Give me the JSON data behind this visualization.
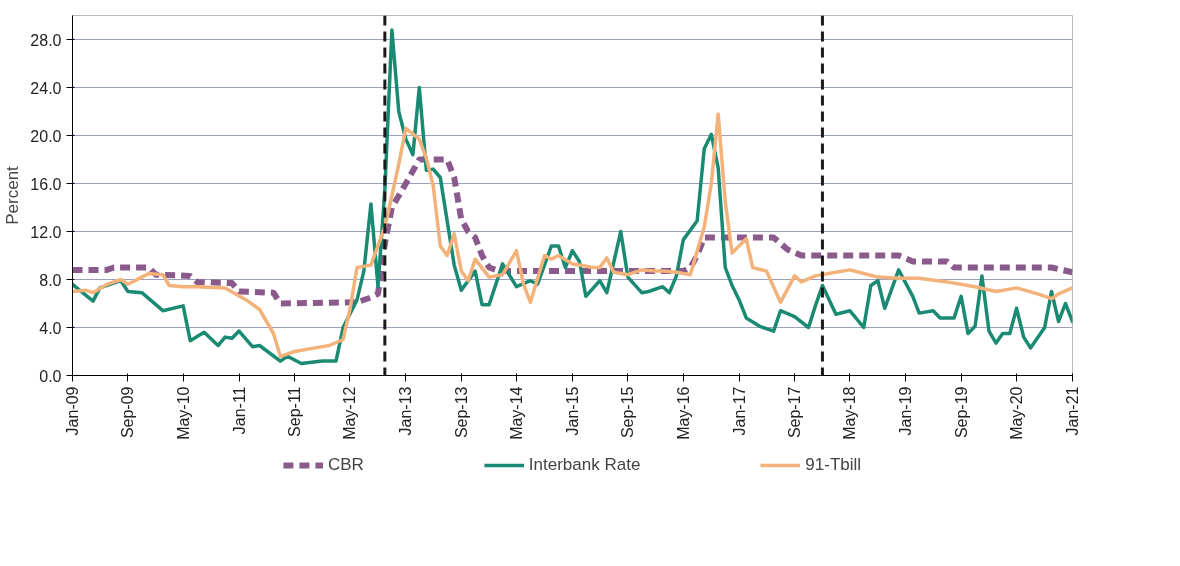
{
  "chart_data": {
    "type": "line",
    "ylabel": "Percent",
    "grid": "y",
    "legend": "bottom",
    "xlim": [
      "2009-01",
      "2021-01"
    ],
    "ylim": [
      0,
      30
    ],
    "xticks": [
      {
        "value": "2009-01",
        "label": "Jan-09"
      },
      {
        "value": "2009-09",
        "label": "Sep-09"
      },
      {
        "value": "2010-05",
        "label": "May-10"
      },
      {
        "value": "2011-01",
        "label": "Jan-11"
      },
      {
        "value": "2011-09",
        "label": "Sep-11"
      },
      {
        "value": "2012-05",
        "label": "May-12"
      },
      {
        "value": "2013-01",
        "label": "Jan-13"
      },
      {
        "value": "2013-09",
        "label": "Sep-13"
      },
      {
        "value": "2014-05",
        "label": "May-14"
      },
      {
        "value": "2015-01",
        "label": "Jan-15"
      },
      {
        "value": "2015-09",
        "label": "Sep-15"
      },
      {
        "value": "2016-05",
        "label": "May-16"
      },
      {
        "value": "2017-01",
        "label": "Jan-17"
      },
      {
        "value": "2017-09",
        "label": "Sep-17"
      },
      {
        "value": "2018-05",
        "label": "May-18"
      },
      {
        "value": "2019-01",
        "label": "Jan-19"
      },
      {
        "value": "2019-09",
        "label": "Sep-19"
      },
      {
        "value": "2020-05",
        "label": "May-20"
      },
      {
        "value": "2021-01",
        "label": "Jan-21"
      }
    ],
    "yticks": [
      {
        "value": 0,
        "label": "0.0"
      },
      {
        "value": 4,
        "label": "4.0"
      },
      {
        "value": 8,
        "label": "8.0"
      },
      {
        "value": 12,
        "label": "12.0"
      },
      {
        "value": 16,
        "label": "16.0"
      },
      {
        "value": 20,
        "label": "20.0"
      },
      {
        "value": 24,
        "label": "24.0"
      },
      {
        "value": 28,
        "label": "28.0"
      }
    ],
    "ref_lines": [
      {
        "axis": "x",
        "value": "2012-10",
        "color": "#1a1a1a",
        "line_style": "dashed"
      },
      {
        "axis": "x",
        "value": "2018-01",
        "color": "#1a1a1a",
        "line_style": "dashed"
      }
    ],
    "series": [
      {
        "name": "CBR",
        "color": "#8b5a8c",
        "line_style": "dashed",
        "x": [
          "2009-01",
          "2009-06",
          "2009-07",
          "2009-12",
          "2010-01",
          "2010-06",
          "2010-07",
          "2010-12",
          "2011-01",
          "2011-06",
          "2011-07",
          "2012-06",
          "2012-08",
          "2012-09",
          "2012-10",
          "2012-11",
          "2013-01",
          "2013-03",
          "2013-07",
          "2013-08",
          "2013-09",
          "2013-10",
          "2013-11",
          "2013-12",
          "2014-01",
          "2014-02",
          "2014-04",
          "2016-05",
          "2016-06",
          "2016-07",
          "2016-08",
          "2017-06",
          "2017-08",
          "2017-10",
          "2018-12",
          "2019-02",
          "2019-07",
          "2019-08",
          "2020-10",
          "2021-01"
        ],
        "values": [
          8.8,
          8.8,
          9.0,
          9.0,
          8.4,
          8.3,
          7.8,
          7.7,
          7.0,
          6.9,
          6.0,
          6.1,
          6.5,
          6.8,
          11.0,
          14.0,
          16.0,
          18.0,
          18.0,
          16.5,
          13.0,
          12.0,
          11.5,
          10.0,
          9.0,
          8.8,
          8.7,
          8.7,
          9.0,
          10.0,
          11.5,
          11.5,
          10.5,
          10.0,
          10.0,
          9.5,
          9.5,
          9.0,
          9.0,
          8.6
        ]
      },
      {
        "name": "Interbank Rate",
        "color": "#1a8a73",
        "line_style": "solid",
        "x": [
          "2009-01",
          "2009-04",
          "2009-05",
          "2009-08",
          "2009-09",
          "2009-11",
          "2010-02",
          "2010-05",
          "2010-06",
          "2010-08",
          "2010-10",
          "2010-11",
          "2010-12",
          "2011-01",
          "2011-03",
          "2011-04",
          "2011-07",
          "2011-08",
          "2011-10",
          "2012-01",
          "2012-03",
          "2012-04",
          "2012-06",
          "2012-07",
          "2012-08",
          "2012-09",
          "2012-10",
          "2012-11",
          "2012-12",
          "2013-01",
          "2013-02",
          "2013-03",
          "2013-04",
          "2013-05",
          "2013-06",
          "2013-07",
          "2013-08",
          "2013-09",
          "2013-11",
          "2013-12",
          "2014-01",
          "2014-03",
          "2014-05",
          "2014-07",
          "2014-08",
          "2014-10",
          "2014-11",
          "2014-12",
          "2015-01",
          "2015-02",
          "2015-03",
          "2015-05",
          "2015-06",
          "2015-08",
          "2015-09",
          "2015-11",
          "2015-12",
          "2016-02",
          "2016-03",
          "2016-04",
          "2016-05",
          "2016-07",
          "2016-08",
          "2016-09",
          "2016-10",
          "2016-11",
          "2016-12",
          "2017-01",
          "2017-02",
          "2017-04",
          "2017-06",
          "2017-07",
          "2017-09",
          "2017-11",
          "2017-12",
          "2018-01",
          "2018-03",
          "2018-05",
          "2018-07",
          "2018-08",
          "2018-09",
          "2018-10",
          "2018-12",
          "2019-02",
          "2019-03",
          "2019-05",
          "2019-06",
          "2019-08",
          "2019-09",
          "2019-10",
          "2019-11",
          "2019-12",
          "2020-01",
          "2020-02",
          "2020-03",
          "2020-04",
          "2020-05",
          "2020-06",
          "2020-07",
          "2020-09",
          "2020-10",
          "2020-11",
          "2020-12",
          "2021-01"
        ],
        "values": [
          7.6,
          6.2,
          7.3,
          7.9,
          7.0,
          6.9,
          5.4,
          5.8,
          2.9,
          3.6,
          2.5,
          3.2,
          3.1,
          3.7,
          2.4,
          2.5,
          1.2,
          1.6,
          1.0,
          1.2,
          1.2,
          4.0,
          6.3,
          8.7,
          14.3,
          7.4,
          15.5,
          28.8,
          22.0,
          19.7,
          18.4,
          24.0,
          17.1,
          17.2,
          16.5,
          12.9,
          9.2,
          7.1,
          8.7,
          5.9,
          5.9,
          9.3,
          7.4,
          7.9,
          7.6,
          10.8,
          10.8,
          9.0,
          10.4,
          9.5,
          6.6,
          7.9,
          6.9,
          12.0,
          8.2,
          6.9,
          7.0,
          7.4,
          6.9,
          8.3,
          11.3,
          12.9,
          18.9,
          20.1,
          17.3,
          9.0,
          7.5,
          6.3,
          4.8,
          4.1,
          3.7,
          5.4,
          4.9,
          4.0,
          5.8,
          7.5,
          5.1,
          5.4,
          4.0,
          7.5,
          7.9,
          5.6,
          8.8,
          6.6,
          5.2,
          5.4,
          4.8,
          4.8,
          6.6,
          3.5,
          4.1,
          8.3,
          3.7,
          2.7,
          3.5,
          3.5,
          5.6,
          3.2,
          2.3,
          4.0,
          7.0,
          4.5,
          6.0,
          4.5
        ]
      },
      {
        "name": "91-Tbill",
        "color": "#f2b27a",
        "line_style": "solid",
        "x": [
          "2009-01",
          "2009-03",
          "2009-04",
          "2009-06",
          "2009-08",
          "2009-09",
          "2009-11",
          "2009-12",
          "2010-02",
          "2010-03",
          "2010-05",
          "2010-07",
          "2010-11",
          "2011-02",
          "2011-04",
          "2011-06",
          "2011-07",
          "2011-09",
          "2011-12",
          "2012-02",
          "2012-04",
          "2012-05",
          "2012-06",
          "2012-08",
          "2012-10",
          "2012-11",
          "2012-12",
          "2013-01",
          "2013-03",
          "2013-04",
          "2013-05",
          "2013-06",
          "2013-07",
          "2013-08",
          "2013-09",
          "2013-10",
          "2013-11",
          "2014-01",
          "2014-03",
          "2014-05",
          "2014-06",
          "2014-07",
          "2014-09",
          "2014-10",
          "2014-11",
          "2015-01",
          "2015-02",
          "2015-04",
          "2015-05",
          "2015-06",
          "2015-07",
          "2015-09",
          "2015-11",
          "2016-01",
          "2016-02",
          "2016-04",
          "2016-06",
          "2016-08",
          "2016-09",
          "2016-10",
          "2016-11",
          "2016-12",
          "2017-02",
          "2017-03",
          "2017-05",
          "2017-07",
          "2017-09",
          "2017-10",
          "2017-12",
          "2018-03",
          "2018-05",
          "2018-07",
          "2018-09",
          "2018-12",
          "2019-03",
          "2019-07",
          "2019-11",
          "2020-02",
          "2020-05",
          "2020-08",
          "2020-10",
          "2020-11",
          "2021-01"
        ],
        "values": [
          7.0,
          7.1,
          6.9,
          7.6,
          8.0,
          7.6,
          8.2,
          8.5,
          8.4,
          7.5,
          7.4,
          7.4,
          7.3,
          6.3,
          5.5,
          3.5,
          1.6,
          2.0,
          2.3,
          2.5,
          3.0,
          5.5,
          9.0,
          9.2,
          12.4,
          15.0,
          17.6,
          20.6,
          19.7,
          18.1,
          15.8,
          10.8,
          10.0,
          11.8,
          8.7,
          7.9,
          9.7,
          8.2,
          8.4,
          10.4,
          7.6,
          6.1,
          10.0,
          9.7,
          10.0,
          9.3,
          9.2,
          9.0,
          9.0,
          9.8,
          8.6,
          8.4,
          8.8,
          8.7,
          8.7,
          8.6,
          8.4,
          12.4,
          16.0,
          21.8,
          14.5,
          10.2,
          11.4,
          9.0,
          8.7,
          6.1,
          8.3,
          7.8,
          8.3,
          8.6,
          8.8,
          8.5,
          8.2,
          8.1,
          8.1,
          7.8,
          7.4,
          7.0,
          7.3,
          6.8,
          6.4,
          6.8,
          7.3
        ]
      }
    ]
  }
}
